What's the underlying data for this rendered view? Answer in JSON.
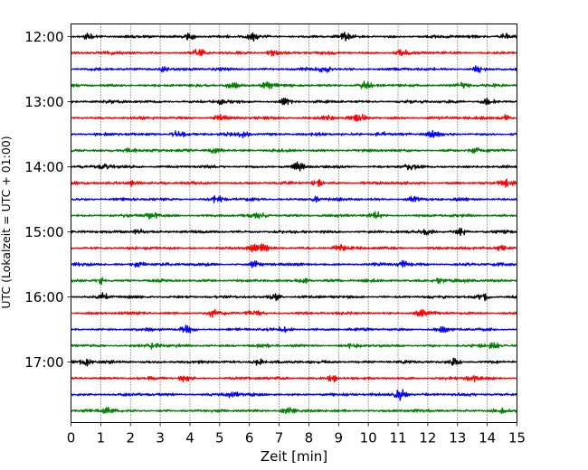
{
  "chart_data": {
    "type": "line",
    "title": "",
    "xlabel": "Zeit  [min]",
    "ylabel": "UTC (Lokalzeit = UTC + 01:00)",
    "xlim": [
      0,
      15
    ],
    "x_ticks": [
      "0",
      "1",
      "2",
      "3",
      "4",
      "5",
      "6",
      "7",
      "8",
      "9",
      "10",
      "11",
      "12",
      "13",
      "14",
      "15"
    ],
    "y_ticks": [
      "12:00",
      "13:00",
      "14:00",
      "15:00",
      "16:00",
      "17:00"
    ],
    "grid": "vertical-dotted",
    "trace_interval_minutes": 15,
    "trace_start": "12:00",
    "trace_end": "17:45",
    "trace_colors": [
      "#000000",
      "#ff0000",
      "#0000ff",
      "#007f00"
    ],
    "series": [
      {
        "start": "12:00",
        "color": "#000000",
        "events": [
          0.6,
          4.0,
          6.1,
          9.2,
          14.6
        ]
      },
      {
        "start": "12:15",
        "color": "#ff0000",
        "events": [
          4.3,
          6.8,
          11.1
        ]
      },
      {
        "start": "12:30",
        "color": "#0000ff",
        "events": [
          3.1,
          8.5,
          13.7
        ]
      },
      {
        "start": "12:45",
        "color": "#007f00",
        "events": [
          5.4,
          6.6,
          9.9,
          13.2
        ]
      },
      {
        "start": "13:00",
        "color": "#000000",
        "events": [
          5.1,
          7.2,
          14.0
        ]
      },
      {
        "start": "13:15",
        "color": "#ff0000",
        "events": [
          5.0,
          8.6,
          9.7,
          14.6
        ]
      },
      {
        "start": "13:30",
        "color": "#0000ff",
        "events": [
          3.6,
          5.8,
          10.4,
          12.2
        ]
      },
      {
        "start": "13:45",
        "color": "#007f00",
        "events": [
          2.0,
          4.9,
          13.6
        ]
      },
      {
        "start": "14:00",
        "color": "#000000",
        "events": [
          1.2,
          7.6,
          11.4
        ]
      },
      {
        "start": "14:15",
        "color": "#ff0000",
        "events": [
          2.1,
          8.3,
          14.7
        ]
      },
      {
        "start": "14:30",
        "color": "#0000ff",
        "events": [
          4.9,
          8.2,
          11.5
        ]
      },
      {
        "start": "14:45",
        "color": "#007f00",
        "events": [
          2.7,
          6.4,
          10.3
        ]
      },
      {
        "start": "15:00",
        "color": "#000000",
        "events": [
          2.3,
          12.0,
          13.1
        ]
      },
      {
        "start": "15:15",
        "color": "#ff0000",
        "events": [
          6.1,
          6.5,
          9.0,
          14.5
        ]
      },
      {
        "start": "15:30",
        "color": "#0000ff",
        "events": [
          2.3,
          6.2,
          11.2
        ]
      },
      {
        "start": "15:45",
        "color": "#007f00",
        "events": [
          1.0,
          7.9,
          12.4
        ]
      },
      {
        "start": "16:00",
        "color": "#000000",
        "events": [
          1.1,
          6.9,
          13.9
        ]
      },
      {
        "start": "16:15",
        "color": "#ff0000",
        "events": [
          4.8,
          6.1,
          11.8
        ]
      },
      {
        "start": "16:30",
        "color": "#0000ff",
        "events": [
          3.9,
          7.2,
          12.5
        ]
      },
      {
        "start": "16:45",
        "color": "#007f00",
        "events": [
          2.8,
          9.5,
          14.2
        ]
      },
      {
        "start": "17:00",
        "color": "#000000",
        "events": [
          0.5,
          6.3,
          12.9
        ]
      },
      {
        "start": "17:15",
        "color": "#ff0000",
        "events": [
          3.8,
          8.8,
          13.5
        ]
      },
      {
        "start": "17:30",
        "color": "#0000ff",
        "events": [
          5.4,
          11.0,
          11.1
        ]
      },
      {
        "start": "17:45",
        "color": "#007f00",
        "events": [
          1.2,
          7.3,
          14.4
        ]
      }
    ]
  }
}
